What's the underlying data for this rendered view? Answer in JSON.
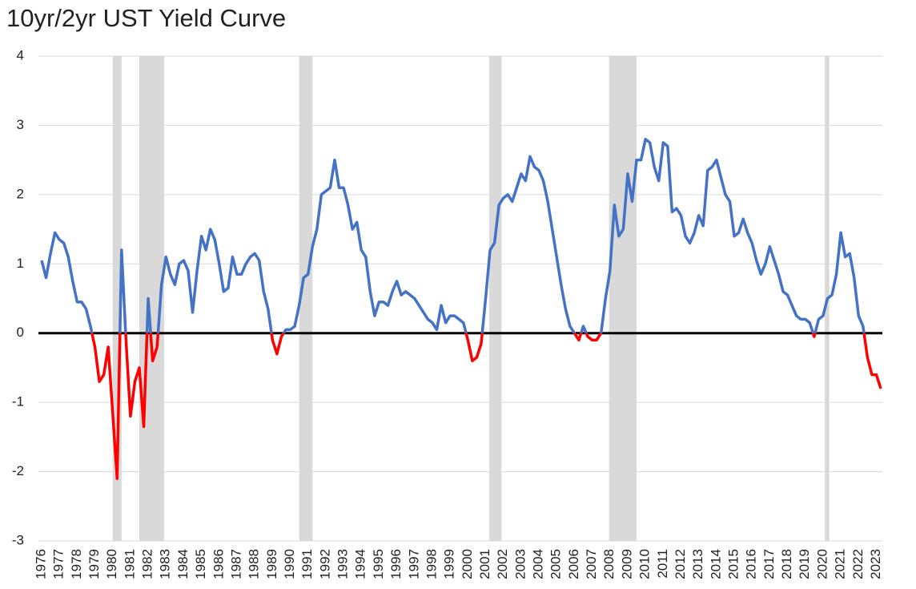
{
  "chart_data": {
    "type": "line",
    "title": "10yr/2yr UST Yield Curve",
    "categories": [
      "1976",
      null,
      null,
      null,
      "1977",
      null,
      null,
      null,
      "1978",
      null,
      null,
      null,
      "1979",
      null,
      null,
      null,
      "1980",
      null,
      null,
      null,
      "1981",
      null,
      null,
      null,
      "1982",
      null,
      null,
      null,
      "1983",
      null,
      null,
      null,
      "1984",
      null,
      null,
      null,
      "1985",
      null,
      null,
      null,
      "1986",
      null,
      null,
      null,
      "1987",
      null,
      null,
      null,
      "1988",
      null,
      null,
      null,
      "1989",
      null,
      null,
      null,
      "1990",
      null,
      null,
      null,
      "1991",
      null,
      null,
      null,
      "1992",
      null,
      null,
      null,
      "1993",
      null,
      null,
      null,
      "1994",
      null,
      null,
      null,
      "1995",
      null,
      null,
      null,
      "1996",
      null,
      null,
      null,
      "1997",
      null,
      null,
      null,
      "1998",
      null,
      null,
      null,
      "1999",
      null,
      null,
      null,
      "2000",
      null,
      null,
      null,
      "2001",
      null,
      null,
      null,
      "2002",
      null,
      null,
      null,
      "2003",
      null,
      null,
      null,
      "2004",
      null,
      null,
      null,
      "2005",
      null,
      null,
      null,
      "2006",
      null,
      null,
      null,
      "2007",
      null,
      null,
      null,
      "2008",
      null,
      null,
      null,
      "2009",
      null,
      null,
      null,
      "2010",
      null,
      null,
      null,
      "2011",
      null,
      null,
      null,
      "2012",
      null,
      null,
      null,
      "2013",
      null,
      null,
      null,
      "2014",
      null,
      null,
      null,
      "2015",
      null,
      null,
      null,
      "2016",
      null,
      null,
      null,
      "2017",
      null,
      null,
      null,
      "2018",
      null,
      null,
      null,
      "2019",
      null,
      null,
      null,
      "2020",
      null,
      null,
      null,
      "2021",
      null,
      null,
      null,
      "2022",
      null,
      null,
      null,
      "2023",
      null
    ],
    "series": [
      {
        "color": "#4472c4",
        "negative_color": "#ff0000",
        "values": [
          1.05,
          0.8,
          1.15,
          1.45,
          1.35,
          1.3,
          1.1,
          0.75,
          0.45,
          0.45,
          0.35,
          0.1,
          -0.2,
          -0.7,
          -0.6,
          -0.2,
          -1.15,
          -2.1,
          1.2,
          -0.1,
          -1.2,
          -0.7,
          -0.5,
          -1.35,
          0.5,
          -0.4,
          -0.2,
          0.7,
          1.1,
          0.85,
          0.7,
          1.0,
          1.05,
          0.9,
          0.3,
          0.9,
          1.4,
          1.2,
          1.5,
          1.35,
          1.0,
          0.6,
          0.65,
          1.1,
          0.85,
          0.85,
          1.0,
          1.1,
          1.15,
          1.05,
          0.6,
          0.35,
          -0.1,
          -0.3,
          -0.05,
          0.05,
          0.05,
          0.1,
          0.4,
          0.8,
          0.85,
          1.25,
          1.5,
          2.0,
          2.05,
          2.1,
          2.5,
          2.1,
          2.1,
          1.85,
          1.5,
          1.6,
          1.2,
          1.1,
          0.6,
          0.25,
          0.45,
          0.45,
          0.4,
          0.6,
          0.75,
          0.55,
          0.6,
          0.55,
          0.5,
          0.4,
          0.3,
          0.2,
          0.15,
          0.05,
          0.4,
          0.15,
          0.25,
          0.25,
          0.2,
          0.15,
          -0.1,
          -0.4,
          -0.35,
          -0.15,
          0.5,
          1.2,
          1.3,
          1.85,
          1.95,
          2.0,
          1.9,
          2.1,
          2.3,
          2.2,
          2.55,
          2.4,
          2.35,
          2.2,
          1.9,
          1.5,
          1.1,
          0.7,
          0.35,
          0.1,
          0.0,
          -0.1,
          0.1,
          -0.05,
          -0.1,
          -0.1,
          0.0,
          0.5,
          0.9,
          1.85,
          1.4,
          1.5,
          2.3,
          1.9,
          2.5,
          2.5,
          2.8,
          2.75,
          2.4,
          2.2,
          2.75,
          2.7,
          1.75,
          1.8,
          1.7,
          1.4,
          1.3,
          1.45,
          1.7,
          1.55,
          2.35,
          2.4,
          2.5,
          2.25,
          2.0,
          1.9,
          1.4,
          1.45,
          1.65,
          1.45,
          1.3,
          1.05,
          0.85,
          1.0,
          1.25,
          1.05,
          0.85,
          0.6,
          0.55,
          0.4,
          0.25,
          0.2,
          0.2,
          0.15,
          -0.05,
          0.2,
          0.25,
          0.5,
          0.55,
          0.85,
          1.45,
          1.1,
          1.15,
          0.8,
          0.25,
          0.1,
          -0.35,
          -0.6,
          -0.6,
          -0.8
        ]
      }
    ],
    "recessions": [
      [
        1980.0,
        1980.5
      ],
      [
        1981.5,
        1982.9
      ],
      [
        1990.5,
        1991.25
      ],
      [
        2001.2,
        2001.9
      ],
      [
        2007.95,
        2009.5
      ],
      [
        2020.1,
        2020.35
      ]
    ],
    "recession_color": "#d9d9d9",
    "zero_line_color": "#000000",
    "ylim": [
      -3,
      4
    ],
    "yticks": [
      -3,
      -2,
      -1,
      0,
      1,
      2,
      3,
      4
    ],
    "grid": true
  }
}
